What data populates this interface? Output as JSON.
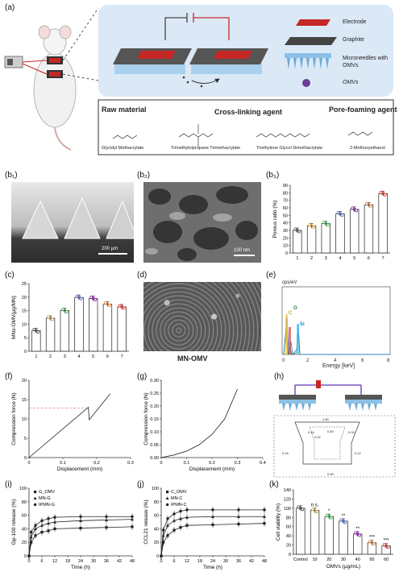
{
  "panel_a": {
    "label": "(a)",
    "legend": [
      "Electrode",
      "Graphite",
      "Microneedles with OMVs",
      "OMVs"
    ],
    "raw_material_title": "Raw material",
    "crosslinker_title": "Cross-linking agent",
    "pore_title": "Pore-foaming agent",
    "chemicals": [
      "Glycidyl Methacrylate",
      "Trimethylolpropane Trimethacrylate",
      "Triethylene Glycol Dimethacrylate",
      "2-Methoxyethanol"
    ]
  },
  "panel_b1": {
    "label": "(b₁)",
    "scale": "200 μm"
  },
  "panel_b2": {
    "label": "(b₂)",
    "scale": "100 nm"
  },
  "panel_d": {
    "label": "(d)",
    "caption": "MN-OMV"
  },
  "panel_e": {
    "label": "(e)",
    "ylabel": "cps/eV",
    "xlabel": "Energy [keV]",
    "peaks": [
      "C",
      "O",
      "Si"
    ]
  },
  "panel_h": {
    "label": "(h)",
    "dims": [
      "1.80",
      "0.50",
      "0.16",
      "0.52",
      "0.04",
      "0.16",
      "0.12",
      "0.90"
    ]
  },
  "chart_data": [
    {
      "id": "b3",
      "label": "(b₃)",
      "type": "bar",
      "categories": [
        "1",
        "2",
        "3",
        "4",
        "5",
        "6",
        "7"
      ],
      "values": [
        30,
        36,
        39,
        52,
        58,
        64,
        79
      ],
      "ylabel": "Porous ratio (%)",
      "ylim": [
        0,
        90
      ],
      "yticks": [
        0,
        10,
        20,
        30,
        40,
        50,
        60,
        70,
        80,
        90
      ]
    },
    {
      "id": "c",
      "label": "(c)",
      "type": "bar",
      "categories": [
        "1",
        "2",
        "3",
        "4",
        "5",
        "6",
        "7"
      ],
      "values": [
        7.6,
        12.2,
        15.0,
        19.9,
        19.5,
        17.4,
        16.4
      ],
      "ylabel": "MNs-OMV(μg/MN)",
      "ylim": [
        0,
        25
      ],
      "yticks": [
        0,
        5,
        10,
        15,
        20,
        25
      ]
    },
    {
      "id": "f",
      "label": "(f)",
      "type": "line",
      "xlabel": "Displacement (mm)",
      "ylabel": "Compression force (N)",
      "xlim": [
        0,
        0.3
      ],
      "ylim": [
        0,
        20
      ],
      "xticks": [
        "0",
        "0.1",
        "0.2",
        "0.3"
      ],
      "yticks": [
        "0",
        "5",
        "10",
        "15",
        "20"
      ],
      "x": [
        0,
        0.175,
        0.178,
        0.24
      ],
      "y": [
        0,
        13.0,
        9.8,
        16.5
      ],
      "ref_line": 12.8
    },
    {
      "id": "g",
      "label": "(g)",
      "type": "line",
      "xlabel": "Displacement (mm)",
      "ylabel": "Compression force (N)",
      "xlim": [
        0,
        0.4
      ],
      "ylim": [
        0,
        0.3
      ],
      "xticks": [
        "0",
        "0.1",
        "0.2",
        "0.3",
        "0.4"
      ],
      "yticks": [
        "0.00",
        "0.05",
        "0.10",
        "0.15",
        "0.20",
        "0.25",
        "0.30"
      ],
      "x": [
        0,
        0.05,
        0.1,
        0.15,
        0.2,
        0.25,
        0.3
      ],
      "y": [
        0,
        0.01,
        0.025,
        0.05,
        0.09,
        0.15,
        0.265
      ]
    },
    {
      "id": "i",
      "label": "(i)",
      "type": "line",
      "xlabel": "Time (h)",
      "ylabel": "Gp-100 release (%)",
      "xlim": [
        0,
        48
      ],
      "ylim": [
        0,
        100
      ],
      "xticks": [
        "0",
        "6",
        "12",
        "18",
        "24",
        "30",
        "36",
        "42",
        "48"
      ],
      "yticks": [
        "0",
        "20",
        "40",
        "60",
        "80",
        "100"
      ],
      "x": [
        0,
        1,
        3,
        6,
        9,
        12,
        24,
        36,
        48
      ],
      "series": [
        {
          "name": "G_OMV",
          "values": [
            0,
            20,
            30,
            35,
            37,
            40,
            41,
            42,
            43
          ]
        },
        {
          "name": "MN-G",
          "values": [
            0,
            28,
            40,
            45,
            48,
            50,
            52,
            53,
            54
          ]
        },
        {
          "name": "IPMN-G",
          "values": [
            0,
            35,
            45,
            52,
            55,
            57,
            58,
            58,
            58
          ]
        }
      ]
    },
    {
      "id": "j",
      "label": "(j)",
      "type": "line",
      "xlabel": "Time (h)",
      "ylabel": "CCL21 release (%)",
      "xlim": [
        0,
        48
      ],
      "ylim": [
        0,
        100
      ],
      "xticks": [
        "0",
        "6",
        "12",
        "18",
        "24",
        "30",
        "36",
        "42",
        "48"
      ],
      "yticks": [
        "0",
        "20",
        "40",
        "60",
        "80",
        "100"
      ],
      "x": [
        0,
        1,
        3,
        6,
        9,
        12,
        24,
        36,
        48
      ],
      "series": [
        {
          "name": "C_OMV",
          "values": [
            0,
            20,
            30,
            38,
            42,
            45,
            46,
            47,
            48
          ]
        },
        {
          "name": "MN-C",
          "values": [
            0,
            30,
            45,
            52,
            55,
            57,
            58,
            58,
            58
          ]
        },
        {
          "name": "IPMN-C",
          "values": [
            0,
            38,
            55,
            62,
            66,
            68,
            68,
            68,
            68
          ]
        }
      ]
    },
    {
      "id": "k",
      "label": "(k)",
      "type": "bar",
      "categories": [
        "Control",
        "10",
        "20",
        "30",
        "40",
        "50",
        "60"
      ],
      "values": [
        100,
        95,
        82,
        72,
        44,
        25,
        18
      ],
      "significance": [
        "",
        "n.s.",
        "*",
        "**",
        "**",
        "***",
        "***"
      ],
      "xlabel": "OMVs (μg/mL)",
      "ylabel": "Cell viability (%)",
      "ylim": [
        0,
        140
      ],
      "yticks": [
        0,
        20,
        40,
        60,
        80,
        100,
        120,
        140
      ]
    }
  ]
}
